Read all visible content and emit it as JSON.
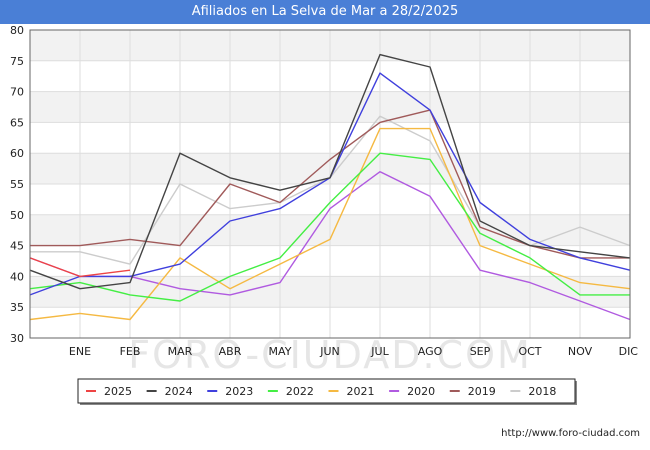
{
  "chart_data": {
    "type": "line",
    "title": "Afiliados en La Selva de Mar a 28/2/2025",
    "categories": [
      "",
      "ENE",
      "FEB",
      "MAR",
      "ABR",
      "MAY",
      "JUN",
      "JUL",
      "AGO",
      "SEP",
      "OCT",
      "NOV",
      "DIC"
    ],
    "ylim": [
      30,
      80
    ],
    "yticks": [
      30,
      35,
      40,
      45,
      50,
      55,
      60,
      65,
      70,
      75,
      80
    ],
    "grid": true,
    "legend_position": "bottom",
    "watermark": "FORO-CIUDAD.COM",
    "source": "http://www.foro-ciudad.com",
    "series": [
      {
        "name": "2018",
        "color": "#cccccc",
        "values": [
          44,
          44,
          42,
          55,
          51,
          52,
          56,
          66,
          62,
          48,
          45,
          48,
          45
        ]
      },
      {
        "name": "2019",
        "color": "#a05a5a",
        "values": [
          45,
          45,
          46,
          45,
          55,
          52,
          59,
          65,
          67,
          48,
          45,
          43,
          43
        ]
      },
      {
        "name": "2020",
        "color": "#b05ae0",
        "values": [
          43,
          40,
          40,
          38,
          37,
          39,
          51,
          57,
          53,
          41,
          39,
          36,
          33
        ]
      },
      {
        "name": "2021",
        "color": "#f5b942",
        "values": [
          33,
          34,
          33,
          43,
          38,
          42,
          46,
          64,
          64,
          45,
          42,
          39,
          38
        ]
      },
      {
        "name": "2022",
        "color": "#44ee44",
        "values": [
          38,
          39,
          37,
          36,
          40,
          43,
          52,
          60,
          59,
          47,
          43,
          37,
          37
        ]
      },
      {
        "name": "2023",
        "color": "#4040dd",
        "values": [
          37,
          40,
          40,
          42,
          49,
          51,
          56,
          73,
          67,
          52,
          46,
          43,
          41
        ]
      },
      {
        "name": "2024",
        "color": "#444444",
        "values": [
          41,
          38,
          39,
          60,
          56,
          54,
          56,
          76,
          74,
          49,
          45,
          44,
          43
        ]
      },
      {
        "name": "2025",
        "color": "#ee4444",
        "values": [
          43,
          40,
          41,
          null,
          null,
          null,
          null,
          null,
          null,
          null,
          null,
          null,
          null
        ]
      }
    ],
    "legend_order": [
      "2025",
      "2024",
      "2023",
      "2022",
      "2021",
      "2020",
      "2019",
      "2018"
    ]
  }
}
